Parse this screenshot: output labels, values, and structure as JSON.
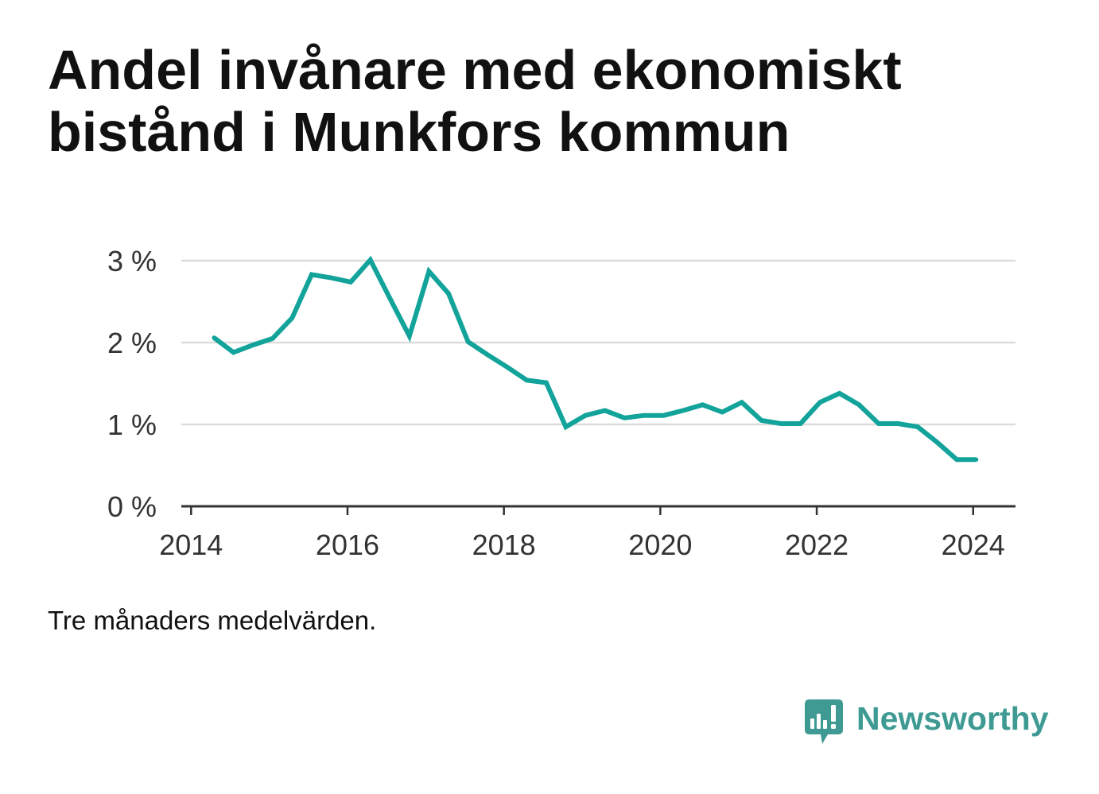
{
  "title": "Andel invånare med ekonomiskt bistånd i Munkfors kommun",
  "footnote": "Tre månaders medelvärden.",
  "brand": {
    "name": "Newsworthy",
    "icon": "newsworthy-logo-icon",
    "color": "#3e9a93"
  },
  "colors": {
    "line": "#12a39a",
    "grid": "#dddddd",
    "axis": "#333333"
  },
  "chart_data": {
    "type": "line",
    "x": [
      "2014-04",
      "2014-07",
      "2014-10",
      "2015-01",
      "2015-04",
      "2015-07",
      "2015-10",
      "2016-01",
      "2016-04",
      "2016-07",
      "2016-10",
      "2017-01",
      "2017-04",
      "2017-07",
      "2017-10",
      "2018-01",
      "2018-04",
      "2018-07",
      "2018-10",
      "2019-01",
      "2019-04",
      "2019-07",
      "2019-10",
      "2020-01",
      "2020-04",
      "2020-07",
      "2020-10",
      "2021-01",
      "2021-04",
      "2021-07",
      "2021-10",
      "2022-01",
      "2022-04",
      "2022-07",
      "2022-10",
      "2023-01",
      "2023-04",
      "2023-07",
      "2023-10",
      "2024-01"
    ],
    "series": [
      {
        "values": [
          2.06,
          1.88,
          1.97,
          2.05,
          2.3,
          2.83,
          2.79,
          2.74,
          3.01,
          2.54,
          2.08,
          2.87,
          2.6,
          2.01,
          1.85,
          1.7,
          1.54,
          1.51,
          0.97,
          1.11,
          1.17,
          1.08,
          1.11,
          1.11,
          1.17,
          1.24,
          1.15,
          1.27,
          1.05,
          1.01,
          1.01,
          1.27,
          1.38,
          1.24,
          1.01,
          1.01,
          0.97,
          0.78,
          0.57,
          0.57
        ]
      }
    ],
    "xticks": [
      "2014",
      "2016",
      "2018",
      "2020",
      "2022",
      "2024"
    ],
    "yticks": [
      0,
      1,
      2,
      3
    ],
    "ytick_labels": [
      "0 %",
      "1 %",
      "2 %",
      "3 %"
    ],
    "xlim": [
      "2013-11",
      "2024-07"
    ],
    "ylim": [
      0,
      3
    ],
    "grid": true
  }
}
